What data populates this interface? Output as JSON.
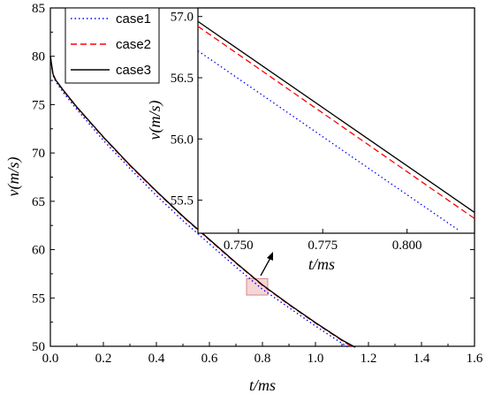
{
  "chart_data": [
    {
      "type": "line",
      "role": "main",
      "xlabel": "t/ms",
      "ylabel": "v(m/s)",
      "xlim": [
        0.0,
        1.6
      ],
      "ylim": [
        50,
        85
      ],
      "x_ticks": [
        "0.0",
        "0.2",
        "0.4",
        "0.6",
        "0.8",
        "1.0",
        "1.2",
        "1.4",
        "1.6"
      ],
      "y_ticks": [
        "50",
        "55",
        "60",
        "65",
        "70",
        "75",
        "80",
        "85"
      ],
      "grid": false,
      "legend": "top-left",
      "series": [
        {
          "name": "case1",
          "color": "#0000ff",
          "style": "dotted",
          "x": [
            0.0,
            0.01,
            0.02,
            0.05,
            0.1,
            0.2,
            0.3,
            0.4,
            0.5,
            0.6,
            0.7,
            0.8,
            0.9,
            1.0,
            1.1,
            1.13
          ],
          "y": [
            80.0,
            78.0,
            77.4,
            76.2,
            74.5,
            71.3,
            68.4,
            65.6,
            63.0,
            60.6,
            58.2,
            55.9,
            54.0,
            52.1,
            50.3,
            49.8
          ]
        },
        {
          "name": "case2",
          "color": "#ff0000",
          "style": "dashed",
          "x": [
            0.0,
            0.01,
            0.02,
            0.05,
            0.1,
            0.2,
            0.3,
            0.4,
            0.5,
            0.6,
            0.7,
            0.8,
            0.9,
            1.0,
            1.1,
            1.14
          ],
          "y": [
            80.0,
            78.1,
            77.5,
            76.4,
            74.7,
            71.6,
            68.7,
            66.0,
            63.4,
            61.0,
            58.6,
            56.3,
            54.3,
            52.4,
            50.6,
            49.9
          ]
        },
        {
          "name": "case3",
          "color": "#000000",
          "style": "solid",
          "x": [
            0.0,
            0.01,
            0.02,
            0.05,
            0.1,
            0.2,
            0.3,
            0.4,
            0.5,
            0.6,
            0.7,
            0.8,
            0.9,
            1.0,
            1.1,
            1.15
          ],
          "y": [
            80.0,
            78.15,
            77.55,
            76.45,
            74.75,
            71.65,
            68.75,
            66.05,
            63.45,
            61.05,
            58.65,
            56.35,
            54.35,
            52.45,
            50.65,
            49.9
          ]
        }
      ],
      "highlight_region": {
        "x": [
          0.74,
          0.82
        ],
        "y": [
          55.3,
          57.0
        ]
      }
    },
    {
      "type": "line",
      "role": "inset",
      "xlabel": "t/ms",
      "ylabel": "v(m/s)",
      "xlim": [
        0.738,
        0.82
      ],
      "ylim": [
        55.23,
        57.07
      ],
      "x_ticks": [
        0.75,
        0.775,
        0.8
      ],
      "x_tick_labels": [
        "0.750",
        "0.775",
        "0.800"
      ],
      "y_ticks": [
        55.5,
        56.0,
        56.5,
        57.0
      ],
      "y_tick_labels": [
        "55.5",
        "56.0",
        "56.5",
        "57.0"
      ],
      "grid": false,
      "series": [
        {
          "name": "case1",
          "color": "#0000ff",
          "style": "dotted",
          "x": [
            0.738,
            0.815
          ],
          "y": [
            56.72,
            55.26
          ]
        },
        {
          "name": "case2",
          "color": "#ff0000",
          "style": "dashed",
          "x": [
            0.738,
            0.82
          ],
          "y": [
            56.92,
            55.35
          ]
        },
        {
          "name": "case3",
          "color": "#000000",
          "style": "solid",
          "x": [
            0.738,
            0.82
          ],
          "y": [
            56.96,
            55.4
          ]
        }
      ]
    }
  ]
}
